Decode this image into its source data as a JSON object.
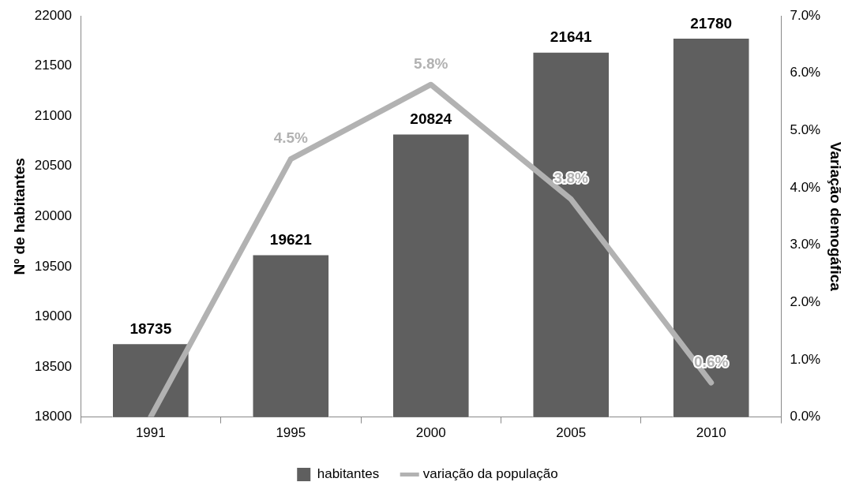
{
  "chart_data": {
    "type": "bar",
    "categories": [
      "1991",
      "1995",
      "2000",
      "2005",
      "2010"
    ],
    "series": [
      {
        "name": "habitantes",
        "color": "#5f5f5f",
        "values": [
          18735,
          19621,
          20824,
          21641,
          21780
        ],
        "value_labels": [
          "18735",
          "19621",
          "20824",
          "21641",
          "21780"
        ]
      },
      {
        "name": "variação da população",
        "type": "line",
        "axis": "y2",
        "color": "#b2b2b2",
        "values": [
          0,
          4.5,
          5.8,
          3.8,
          0.6
        ],
        "value_labels": [
          null,
          "4.5%",
          "5.8%",
          "3.8%",
          "0.6%"
        ]
      }
    ],
    "ylabel": "Nº de habitantes",
    "y2label": "Variação demogáfica",
    "ylim": [
      18000,
      22000
    ],
    "yticks": [
      18000,
      18500,
      19000,
      19500,
      20000,
      20500,
      21000,
      21500,
      22000
    ],
    "y2lim": [
      0,
      7
    ],
    "y2ticks": [
      {
        "value": 0,
        "label": "0.0%"
      },
      {
        "value": 1,
        "label": "1.0%"
      },
      {
        "value": 2,
        "label": "2.0%"
      },
      {
        "value": 3,
        "label": "3.0%"
      },
      {
        "value": 4,
        "label": "4.0%"
      },
      {
        "value": 5,
        "label": "5.0%"
      },
      {
        "value": 6,
        "label": "6.0%"
      },
      {
        "value": 7,
        "label": "7.0%"
      }
    ],
    "grid": false,
    "legend": "bottom",
    "marker": "none",
    "line_style": "solid"
  }
}
